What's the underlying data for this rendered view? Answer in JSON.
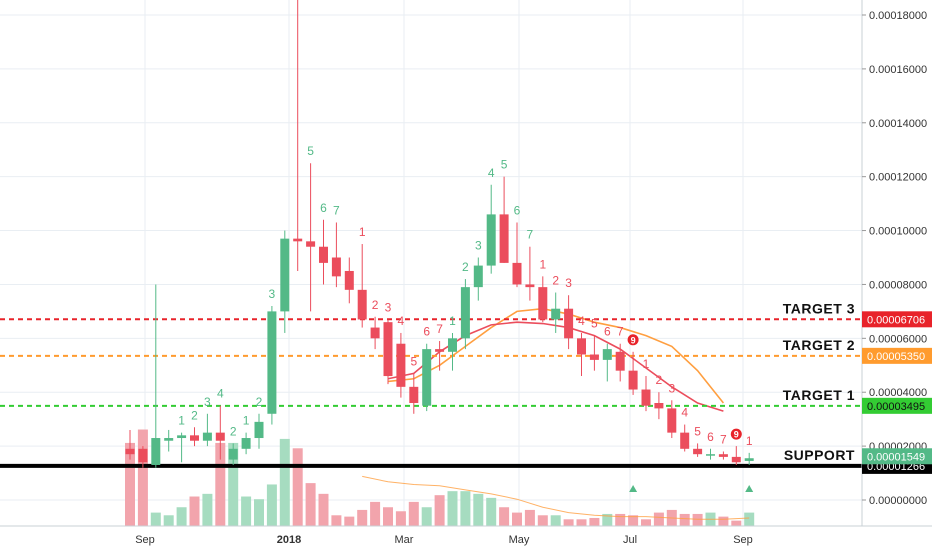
{
  "chart_data": {
    "type": "candlestick",
    "title": "",
    "xlabel": "",
    "ylabel": "",
    "y_axis_position": "right",
    "ylim": [
      -4e-06,
      0.00019
    ],
    "yticks": [
      "0.00018000",
      "0.00016000",
      "0.00014000",
      "0.00012000",
      "0.00010000",
      "0.00008000",
      "0.00006000",
      "0.00004000",
      "0.00002000",
      "0.00000000"
    ],
    "xticks": [
      "Sep",
      "2018",
      "Mar",
      "May",
      "Jul",
      "Sep"
    ],
    "grid": true,
    "colors": {
      "up": "#53b987",
      "down": "#eb4d5c",
      "up_volume": "#a6dcc0",
      "down_volume": "#f2a4ac",
      "ma_fast": "#eb4d5c",
      "ma_slow": "#ff9f40",
      "target3": "#e8232a",
      "target2": "#ff9b2e",
      "target1": "#33cc33",
      "support": "#000000"
    },
    "candles": [
      {
        "o": 1.9e-05,
        "h": 2.6e-05,
        "l": 1.5e-05,
        "c": 1.7e-05
      },
      {
        "o": 1.9e-05,
        "h": 2e-05,
        "l": 1.2e-05,
        "c": 1.4e-05
      },
      {
        "o": 1.3e-05,
        "h": 8e-05,
        "l": 1.2e-05,
        "c": 2.3e-05
      },
      {
        "o": 2.2e-05,
        "h": 2.6e-05,
        "l": 1.8e-05,
        "c": 2.3e-05
      },
      {
        "o": 2.3e-05,
        "h": 2.5e-05,
        "l": 1.4e-05,
        "c": 2.4e-05
      },
      {
        "o": 2.4e-05,
        "h": 2.7e-05,
        "l": 2e-05,
        "c": 2.2e-05
      },
      {
        "o": 2.2e-05,
        "h": 3.2e-05,
        "l": 2e-05,
        "c": 2.5e-05
      },
      {
        "o": 2.5e-05,
        "h": 3.5e-05,
        "l": 1.5e-05,
        "c": 2.2e-05
      },
      {
        "o": 1.5e-05,
        "h": 2.1e-05,
        "l": 1.3e-05,
        "c": 1.9e-05
      },
      {
        "o": 1.9e-05,
        "h": 2.5e-05,
        "l": 1.7e-05,
        "c": 2.3e-05
      },
      {
        "o": 2.3e-05,
        "h": 3.2e-05,
        "l": 1.9e-05,
        "c": 2.9e-05
      },
      {
        "o": 3.2e-05,
        "h": 7.2e-05,
        "l": 2.8e-05,
        "c": 7e-05
      },
      {
        "o": 7e-05,
        "h": 0.0001,
        "l": 6.2e-05,
        "c": 9.7e-05
      },
      {
        "o": 9.7e-05,
        "h": 0.000186,
        "l": 8.5e-05,
        "c": 9.6e-05
      },
      {
        "o": 9.6e-05,
        "h": 0.000125,
        "l": 7e-05,
        "c": 9.4e-05
      },
      {
        "o": 9.4e-05,
        "h": 0.000104,
        "l": 8e-05,
        "c": 8.8e-05
      },
      {
        "o": 9e-05,
        "h": 0.000103,
        "l": 7.9e-05,
        "c": 8.3e-05
      },
      {
        "o": 8.5e-05,
        "h": 9e-05,
        "l": 7.3e-05,
        "c": 7.8e-05
      },
      {
        "o": 7.8e-05,
        "h": 9.5e-05,
        "l": 6.4e-05,
        "c": 6.7e-05
      },
      {
        "o": 6.4e-05,
        "h": 6.8e-05,
        "l": 5.6e-05,
        "c": 6e-05
      },
      {
        "o": 6.6e-05,
        "h": 6.7e-05,
        "l": 4.3e-05,
        "c": 4.6e-05
      },
      {
        "o": 5.8e-05,
        "h": 6.2e-05,
        "l": 3.8e-05,
        "c": 4.2e-05
      },
      {
        "o": 4.2e-05,
        "h": 4.7e-05,
        "l": 3.2e-05,
        "c": 3.6e-05
      },
      {
        "o": 3.5e-05,
        "h": 5.8e-05,
        "l": 3.3e-05,
        "c": 5.6e-05
      },
      {
        "o": 5.6e-05,
        "h": 5.9e-05,
        "l": 4.8e-05,
        "c": 5.5e-05
      },
      {
        "o": 5.5e-05,
        "h": 6.2e-05,
        "l": 4.8e-05,
        "c": 6e-05
      },
      {
        "o": 6e-05,
        "h": 8.2e-05,
        "l": 5.6e-05,
        "c": 7.9e-05
      },
      {
        "o": 7.9e-05,
        "h": 9e-05,
        "l": 7.4e-05,
        "c": 8.7e-05
      },
      {
        "o": 8.7e-05,
        "h": 0.000117,
        "l": 8.4e-05,
        "c": 0.000106
      },
      {
        "o": 0.000106,
        "h": 0.00012,
        "l": 8.8e-05,
        "c": 8.8e-05
      },
      {
        "o": 8.8e-05,
        "h": 0.000103,
        "l": 7.9e-05,
        "c": 8e-05
      },
      {
        "o": 8e-05,
        "h": 9.4e-05,
        "l": 7.4e-05,
        "c": 7.9e-05
      },
      {
        "o": 7.9e-05,
        "h": 8.3e-05,
        "l": 6.6e-05,
        "c": 6.7e-05
      },
      {
        "o": 6.7e-05,
        "h": 7.7e-05,
        "l": 6.2e-05,
        "c": 7.1e-05
      },
      {
        "o": 7.1e-05,
        "h": 7.6e-05,
        "l": 5.6e-05,
        "c": 6e-05
      },
      {
        "o": 6e-05,
        "h": 6.2e-05,
        "l": 4.6e-05,
        "c": 5.4e-05
      },
      {
        "o": 5.4e-05,
        "h": 6.1e-05,
        "l": 4.8e-05,
        "c": 5.2e-05
      },
      {
        "o": 5.2e-05,
        "h": 5.8e-05,
        "l": 4.4e-05,
        "c": 5.6e-05
      },
      {
        "o": 5.5e-05,
        "h": 5.8e-05,
        "l": 4.4e-05,
        "c": 4.8e-05
      },
      {
        "o": 4.8e-05,
        "h": 5.5e-05,
        "l": 3.9e-05,
        "c": 4.1e-05
      },
      {
        "o": 4.1e-05,
        "h": 4.6e-05,
        "l": 3.3e-05,
        "c": 3.5e-05
      },
      {
        "o": 3.6e-05,
        "h": 4e-05,
        "l": 3e-05,
        "c": 3.4e-05
      },
      {
        "o": 3.4e-05,
        "h": 3.7e-05,
        "l": 2.3e-05,
        "c": 2.5e-05
      },
      {
        "o": 2.5e-05,
        "h": 2.8e-05,
        "l": 1.8e-05,
        "c": 1.9e-05
      },
      {
        "o": 1.9e-05,
        "h": 2.1e-05,
        "l": 1.6e-05,
        "c": 1.7e-05
      },
      {
        "o": 1.7e-05,
        "h": 1.9e-05,
        "l": 1.5e-05,
        "c": 1.7e-05
      },
      {
        "o": 1.7e-05,
        "h": 1.8e-05,
        "l": 1.5e-05,
        "c": 1.6e-05
      },
      {
        "o": 1.6e-05,
        "h": 2e-05,
        "l": 1.3e-05,
        "c": 1.4e-05
      },
      {
        "o": 1.45e-05,
        "h": 1.75e-05,
        "l": 1.3e-05,
        "c": 1.55e-05
      }
    ],
    "volume": [
      0.62,
      0.72,
      0.1,
      0.08,
      0.14,
      0.22,
      0.24,
      0.62,
      0.62,
      0.22,
      0.2,
      0.31,
      0.65,
      0.58,
      0.32,
      0.24,
      0.08,
      0.07,
      0.12,
      0.18,
      0.14,
      0.11,
      0.18,
      0.14,
      0.23,
      0.26,
      0.26,
      0.24,
      0.21,
      0.14,
      0.1,
      0.12,
      0.08,
      0.08,
      0.05,
      0.05,
      0.06,
      0.09,
      0.09,
      0.08,
      0.05,
      0.1,
      0.12,
      0.09,
      0.09,
      0.1,
      0.07,
      0.04,
      0.1
    ],
    "ma_fast": [
      [
        20,
        4.5e-05
      ],
      [
        22,
        4.7e-05
      ],
      [
        24,
        5.5e-05
      ],
      [
        26,
        6.1e-05
      ],
      [
        28,
        6.5e-05
      ],
      [
        30,
        6.6e-05
      ],
      [
        32,
        6.55e-05
      ],
      [
        34,
        6.4e-05
      ],
      [
        36,
        6.1e-05
      ],
      [
        38,
        5.6e-05
      ],
      [
        40,
        4.9e-05
      ],
      [
        42,
        4.2e-05
      ],
      [
        44,
        3.6e-05
      ],
      [
        46,
        3.3e-05
      ]
    ],
    "ma_slow": [
      [
        20,
        4.4e-05
      ],
      [
        22,
        4.5e-05
      ],
      [
        24,
        5e-05
      ],
      [
        26,
        5.7e-05
      ],
      [
        28,
        6.4e-05
      ],
      [
        30,
        7e-05
      ],
      [
        32,
        7.1e-05
      ],
      [
        34,
        6.9e-05
      ],
      [
        36,
        6.6e-05
      ],
      [
        38,
        6.4e-05
      ],
      [
        40,
        6.1e-05
      ],
      [
        42,
        5.7e-05
      ],
      [
        44,
        4.8e-05
      ],
      [
        46,
        3.6e-05
      ]
    ],
    "counts": [
      {
        "i": 4,
        "label": "1",
        "dir": "up"
      },
      {
        "i": 5,
        "label": "2",
        "dir": "up"
      },
      {
        "i": 6,
        "label": "3",
        "dir": "up"
      },
      {
        "i": 7,
        "label": "4",
        "dir": "up"
      },
      {
        "i": 8,
        "label": "2",
        "dir": "up"
      },
      {
        "i": 9,
        "label": "1",
        "dir": "up"
      },
      {
        "i": 10,
        "label": "2",
        "dir": "up"
      },
      {
        "i": 11,
        "label": "3",
        "dir": "up"
      },
      {
        "i": 13,
        "label": "4",
        "dir": "up"
      },
      {
        "i": 14,
        "label": "5",
        "dir": "up"
      },
      {
        "i": 15,
        "label": "6",
        "dir": "up"
      },
      {
        "i": 16,
        "label": "7",
        "dir": "up"
      },
      {
        "i": 18,
        "label": "1",
        "dir": "down"
      },
      {
        "i": 19,
        "label": "2",
        "dir": "down"
      },
      {
        "i": 20,
        "label": "3",
        "dir": "down"
      },
      {
        "i": 21,
        "label": "4",
        "dir": "down"
      },
      {
        "i": 22,
        "label": "5",
        "dir": "down"
      },
      {
        "i": 23,
        "label": "6",
        "dir": "down"
      },
      {
        "i": 24,
        "label": "7",
        "dir": "down"
      },
      {
        "i": 25,
        "label": "1",
        "dir": "up"
      },
      {
        "i": 26,
        "label": "2",
        "dir": "up"
      },
      {
        "i": 27,
        "label": "3",
        "dir": "up"
      },
      {
        "i": 28,
        "label": "4",
        "dir": "up"
      },
      {
        "i": 29,
        "label": "5",
        "dir": "up"
      },
      {
        "i": 30,
        "label": "6",
        "dir": "up"
      },
      {
        "i": 31,
        "label": "7",
        "dir": "up"
      },
      {
        "i": 32,
        "label": "1",
        "dir": "down"
      },
      {
        "i": 33,
        "label": "2",
        "dir": "down"
      },
      {
        "i": 34,
        "label": "3",
        "dir": "down"
      },
      {
        "i": 35,
        "label": "4",
        "dir": "down"
      },
      {
        "i": 36,
        "label": "5",
        "dir": "down"
      },
      {
        "i": 37,
        "label": "6",
        "dir": "down"
      },
      {
        "i": 38,
        "label": "7",
        "dir": "down"
      },
      {
        "i": 40,
        "label": "1",
        "dir": "down"
      },
      {
        "i": 41,
        "label": "2",
        "dir": "down"
      },
      {
        "i": 42,
        "label": "3",
        "dir": "down"
      },
      {
        "i": 43,
        "label": "4",
        "dir": "down"
      },
      {
        "i": 44,
        "label": "5",
        "dir": "down"
      },
      {
        "i": 45,
        "label": "6",
        "dir": "down"
      },
      {
        "i": 46,
        "label": "7",
        "dir": "down"
      },
      {
        "i": 48,
        "label": "1",
        "dir": "down"
      }
    ],
    "nine_badges": [
      39,
      47
    ],
    "levels": [
      {
        "name": "TARGET 3",
        "value": 6.706e-05,
        "price_label": "0.00006706",
        "color": "#e8232a",
        "style": "dashed"
      },
      {
        "name": "TARGET 2",
        "value": 5.35e-05,
        "price_label": "0.00005350",
        "color": "#ff9b2e",
        "style": "dashed"
      },
      {
        "name": "TARGET 1",
        "value": 3.495e-05,
        "price_label": "0.00003495",
        "color": "#33cc33",
        "style": "dashed"
      },
      {
        "name": "SUPPORT",
        "value": 1.266e-05,
        "price_label": "0.00001266",
        "color": "#000000",
        "style": "solid"
      }
    ],
    "last_price": {
      "value": 1.549e-05,
      "label": "0.00001549",
      "color": "#53b987"
    }
  }
}
